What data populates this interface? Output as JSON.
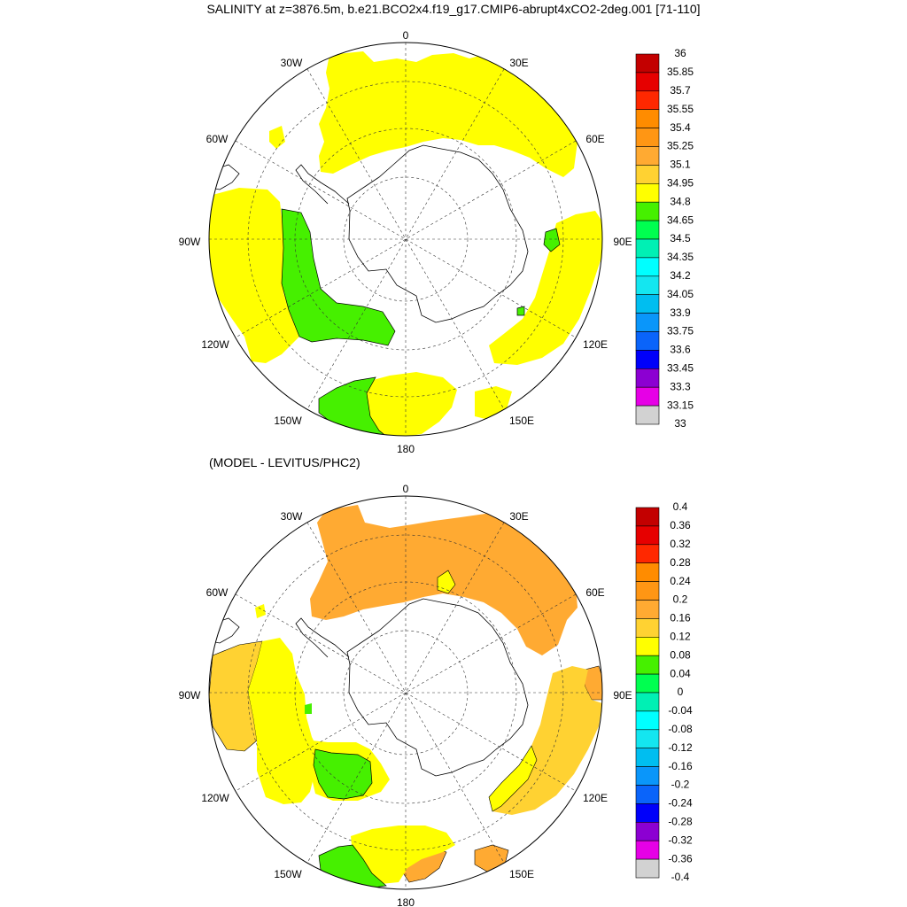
{
  "title": "SALINITY at z=3876.5m, b.e21.BCO2x4.f19_g17.CMIP6-abrupt4xCO2-2deg.001 [71-110]",
  "subtitle": "(MODEL - LEVITUS/PHC2)",
  "longitude_labels": [
    "0",
    "30E",
    "60E",
    "90E",
    "120E",
    "150E",
    "180",
    "150W",
    "120W",
    "90W",
    "60W",
    "30W"
  ],
  "colors": {
    "salinity": [
      "#6e6e6e",
      "#d2d2d2",
      "#e600e6",
      "#8c00d2",
      "#0000fa",
      "#0a64fa",
      "#0a96fa",
      "#00bef0",
      "#14e6f0",
      "#00ffff",
      "#00f0b4",
      "#00ff50",
      "#46f000",
      "#ffff00",
      "#ffd232",
      "#ffaa32",
      "#ff9614",
      "#ff8c00",
      "#ff2800",
      "#e60000",
      "#c30000"
    ],
    "difference": [
      "#6e6e6e",
      "#d2d2d2",
      "#e600e6",
      "#8c00d2",
      "#0000fa",
      "#0a64fa",
      "#0a96fa",
      "#00bef0",
      "#14e6f0",
      "#00ffff",
      "#00f0b4",
      "#00ff50",
      "#46f000",
      "#ffff00",
      "#ffd232",
      "#ffaa32",
      "#ff9614",
      "#ff8c00",
      "#ff2800",
      "#e60000",
      "#c30000"
    ]
  },
  "colorbars": {
    "salinity": [
      "36",
      "35.85",
      "35.7",
      "35.55",
      "35.4",
      "35.25",
      "35.1",
      "34.95",
      "34.8",
      "34.65",
      "34.5",
      "34.35",
      "34.2",
      "34.05",
      "33.9",
      "33.75",
      "33.6",
      "33.45",
      "33.3",
      "33.15",
      "33"
    ],
    "difference": [
      "0.4",
      "0.36",
      "0.32",
      "0.28",
      "0.24",
      "0.2",
      "0.16",
      "0.12",
      "0.08",
      "0.04",
      "0",
      "-0.04",
      "-0.08",
      "-0.12",
      "-0.16",
      "-0.2",
      "-0.24",
      "-0.28",
      "-0.32",
      "-0.36",
      "-0.4"
    ]
  }
}
